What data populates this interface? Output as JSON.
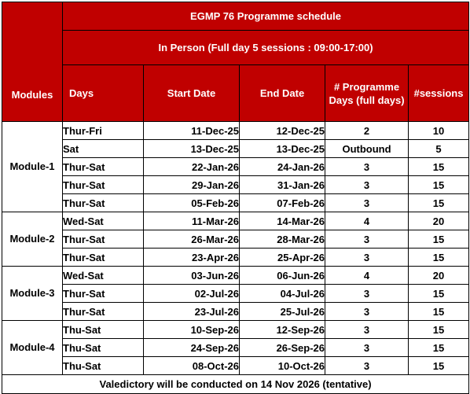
{
  "title": "EGMP 76 Programme schedule",
  "subtitle": "In Person (Full day 5 sessions : 09:00-17:00)",
  "headers": {
    "modules": "Modules",
    "days": "Days",
    "start_date": "Start Date",
    "end_date": "End Date",
    "programme_days": "# Programme Days (full days)",
    "sessions": "#sessions"
  },
  "modules": [
    {
      "name": "Module-1",
      "rows": [
        {
          "days": "Thur-Fri",
          "start": "11-Dec-25",
          "end": "12-Dec-25",
          "pdays": "2",
          "sessions": "10"
        },
        {
          "days": "Sat",
          "start": "13-Dec-25",
          "end": "13-Dec-25",
          "pdays": "Outbound",
          "sessions": "5"
        },
        {
          "days": "Thur-Sat",
          "start": "22-Jan-26",
          "end": "24-Jan-26",
          "pdays": "3",
          "sessions": "15"
        },
        {
          "days": "Thur-Sat",
          "start": "29-Jan-26",
          "end": "31-Jan-26",
          "pdays": "3",
          "sessions": "15"
        },
        {
          "days": "Thur-Sat",
          "start": "05-Feb-26",
          "end": "07-Feb-26",
          "pdays": "3",
          "sessions": "15"
        }
      ]
    },
    {
      "name": "Module-2",
      "rows": [
        {
          "days": "Wed-Sat",
          "start": "11-Mar-26",
          "end": "14-Mar-26",
          "pdays": "4",
          "sessions": "20"
        },
        {
          "days": "Thur-Sat",
          "start": "26-Mar-26",
          "end": "28-Mar-26",
          "pdays": "3",
          "sessions": "15"
        },
        {
          "days": "Thur-Sat",
          "start": "23-Apr-26",
          "end": "25-Apr-26",
          "pdays": "3",
          "sessions": "15"
        }
      ]
    },
    {
      "name": "Module-3",
      "rows": [
        {
          "days": "Wed-Sat",
          "start": "03-Jun-26",
          "end": "06-Jun-26",
          "pdays": "4",
          "sessions": "20"
        },
        {
          "days": "Thur-Sat",
          "start": "02-Jul-26",
          "end": "04-Jul-26",
          "pdays": "3",
          "sessions": "15"
        },
        {
          "days": "Thur-Sat",
          "start": "23-Jul-26",
          "end": "25-Jul-26",
          "pdays": "3",
          "sessions": "15"
        }
      ]
    },
    {
      "name": "Module-4",
      "rows": [
        {
          "days": "Thu-Sat",
          "start": "10-Sep-26",
          "end": "12-Sep-26",
          "pdays": "3",
          "sessions": "15"
        },
        {
          "days": "Thu-Sat",
          "start": "24-Sep-26",
          "end": "26-Sep-26",
          "pdays": "3",
          "sessions": "15"
        },
        {
          "days": "Thu-Sat",
          "start": "08-Oct-26",
          "end": "10-Oct-26",
          "pdays": "3",
          "sessions": "15"
        }
      ]
    }
  ],
  "footer": "Valedictory will be conducted on 14 Nov 2026 (tentative)",
  "colors": {
    "header_bg": "#c00000",
    "header_text": "#ffffff",
    "border": "#000000"
  }
}
